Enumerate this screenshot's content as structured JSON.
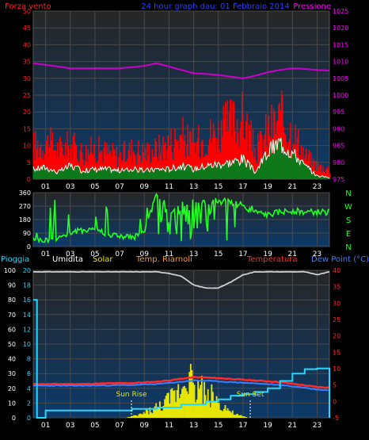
{
  "header": {
    "left_label": "Forza vento",
    "left_color": "#ff2020",
    "title": "24 hour graph dau: 01 Febbraio 2014",
    "title_color": "#2a3fff",
    "right_label": "Pressione",
    "right_color": "#ff00ff"
  },
  "compass": [
    "N",
    "W",
    "S",
    "E",
    "N"
  ],
  "middle_labels": {
    "pioggia": "Pioggia",
    "umidita": "Umidita",
    "solar": "Solar",
    "temp_riarnoli": "Temp. Riarnoli",
    "temperatura": "Temperatura",
    "dew_point": "Dew Point (°C)"
  },
  "annotations": {
    "sun_rise": "Sun Rise",
    "sun_set": "Sun Set"
  },
  "colors": {
    "wind_gust": "#ff0000",
    "wind_avg": "#ffffff",
    "wind_fill": "#0a7a1a",
    "pressure": "#cc00cc",
    "direction": "#22ff22",
    "humidity": "#cfcfcf",
    "solar": "#e6e600",
    "temperature": "#ff2a2a",
    "dewpoint": "#3a7fff",
    "rain": "#22d8ff",
    "bg_top": "#262626",
    "bg_bottom": "#0c3a6a"
  },
  "chart_data": [
    {
      "type": "line",
      "x_ticks": [
        "01",
        "03",
        "05",
        "07",
        "09",
        "11",
        "13",
        "15",
        "17",
        "19",
        "21",
        "23"
      ],
      "xlim": [
        0,
        24
      ],
      "ylim_left": [
        0,
        50
      ],
      "yticks_left": [
        0,
        5,
        10,
        15,
        20,
        25,
        30,
        35,
        40,
        45,
        50
      ],
      "ylim_right": [
        975,
        1025
      ],
      "yticks_right": [
        975,
        980,
        985,
        990,
        995,
        1000,
        1005,
        1010,
        1015,
        1020,
        1025
      ],
      "series": [
        {
          "name": "Pressione",
          "x": [
            0,
            1,
            2,
            3,
            4,
            5,
            6,
            7,
            8,
            9,
            10,
            11,
            12,
            13,
            14,
            15,
            16,
            17,
            18,
            19,
            20,
            21,
            22,
            23,
            24
          ],
          "values": [
            1009.5,
            1009,
            1008.5,
            1008,
            1008,
            1008,
            1008,
            1008,
            1008.3,
            1008.7,
            1009.5,
            1008.5,
            1007.5,
            1006.5,
            1006.3,
            1006,
            1005.5,
            1005,
            1005.8,
            1006.8,
            1007.5,
            1008,
            1007.8,
            1007.5,
            1007.3
          ]
        },
        {
          "name": "Forza vento",
          "x": [
            0,
            1,
            2,
            3,
            4,
            5,
            6,
            7,
            8,
            9,
            10,
            11,
            12,
            13,
            14,
            15,
            16,
            17,
            18,
            19,
            20,
            21,
            22,
            23,
            24
          ],
          "values": [
            10,
            11,
            9,
            10,
            8,
            9,
            8,
            7,
            9,
            8,
            9,
            11,
            13,
            10,
            13,
            14,
            17,
            18,
            8,
            15,
            18,
            14,
            7,
            4,
            3
          ]
        },
        {
          "name": "avg",
          "x": [
            0,
            1,
            2,
            3,
            4,
            5,
            6,
            7,
            8,
            9,
            10,
            11,
            12,
            13,
            14,
            15,
            16,
            17,
            18,
            19,
            20,
            21,
            22,
            23,
            24
          ],
          "values": [
            3,
            3.5,
            2,
            4,
            2.5,
            3,
            3,
            2.5,
            3,
            2.5,
            3,
            3,
            4,
            3,
            4,
            4.5,
            5,
            6,
            2,
            8,
            11,
            8,
            4,
            1,
            0.5
          ]
        }
      ]
    },
    {
      "type": "scatter",
      "x_ticks": [
        "01",
        "03",
        "05",
        "07",
        "09",
        "11",
        "13",
        "15",
        "17",
        "19",
        "21",
        "23"
      ],
      "xlim": [
        0,
        24
      ],
      "ylim": [
        0,
        360
      ],
      "yticks": [
        0,
        90,
        180,
        270,
        360
      ],
      "series": [
        {
          "name": "direction",
          "x": [
            0,
            1,
            2,
            3,
            4,
            5,
            6,
            7,
            8,
            9,
            10,
            11,
            12,
            13,
            14,
            15,
            16,
            17,
            18,
            19,
            20,
            21,
            22,
            23,
            24
          ],
          "values": [
            40,
            40,
            60,
            90,
            110,
            120,
            80,
            70,
            60,
            90,
            350,
            200,
            280,
            300,
            290,
            310,
            300,
            260,
            230,
            210,
            230,
            240,
            230,
            230,
            230
          ]
        }
      ]
    },
    {
      "type": "line",
      "x_ticks": [
        "01",
        "03",
        "05",
        "07",
        "09",
        "11",
        "13",
        "15",
        "17",
        "19",
        "21",
        "23"
      ],
      "xlim": [
        0,
        24
      ],
      "ylim_left": [
        0,
        100
      ],
      "yticks_left": [
        0,
        10,
        20,
        30,
        40,
        50,
        60,
        70,
        80,
        90,
        100
      ],
      "ylim_rain": [
        0,
        20
      ],
      "yticks_rain": [
        0,
        2,
        4,
        6,
        8,
        10,
        12,
        14,
        16,
        18,
        20
      ],
      "ylim_right": [
        -5,
        40
      ],
      "yticks_right": [
        -5,
        0,
        5,
        10,
        15,
        20,
        25,
        30,
        35,
        40
      ],
      "series": [
        {
          "name": "Umidita",
          "x": [
            0,
            2,
            4,
            6,
            8,
            10,
            11,
            12,
            13,
            14,
            15,
            16,
            17,
            18,
            20,
            22,
            23,
            24
          ],
          "values": [
            99,
            99,
            99,
            99,
            99,
            99,
            98,
            96,
            90,
            88,
            88,
            92,
            97,
            99,
            99,
            99,
            97,
            99
          ]
        },
        {
          "name": "Temperatura",
          "x": [
            0,
            2,
            4,
            6,
            8,
            10,
            11,
            12,
            13,
            14,
            15,
            16,
            17,
            18,
            20,
            22,
            23,
            24
          ],
          "values": [
            5.3,
            5.3,
            5.3,
            5.5,
            5.6,
            6.0,
            6.4,
            6.9,
            7.4,
            7.3,
            7.1,
            6.9,
            6.6,
            6.4,
            5.9,
            4.9,
            4.4,
            4.2
          ]
        },
        {
          "name": "Dew Point (°C)",
          "x": [
            0,
            2,
            4,
            6,
            8,
            10,
            11,
            12,
            13,
            14,
            15,
            16,
            17,
            18,
            20,
            22,
            23,
            24
          ],
          "values": [
            4.8,
            4.8,
            4.8,
            4.9,
            5.0,
            5.3,
            5.6,
            6.0,
            6.4,
            6.3,
            6.1,
            5.9,
            5.7,
            5.5,
            5.0,
            4.2,
            3.6,
            3.4
          ]
        },
        {
          "name": "Pioggia",
          "x": [
            0,
            0.3,
            1,
            4,
            6,
            8,
            10,
            12,
            14,
            15,
            16,
            17,
            18,
            19,
            20,
            21,
            22,
            23,
            24
          ],
          "values": [
            16,
            0,
            1,
            1,
            1,
            1.2,
            1.4,
            1.8,
            2.2,
            2.5,
            3,
            3.2,
            3.5,
            4,
            5,
            6,
            6.6,
            6.7,
            6.8
          ]
        },
        {
          "name": "Solar",
          "x": [
            0,
            7.4,
            8.5,
            9.5,
            10.5,
            11.5,
            12,
            12.5,
            13,
            13.5,
            14,
            14.5,
            15,
            15.5,
            16,
            16.5,
            17.4,
            24
          ],
          "values": [
            0,
            0,
            2,
            6,
            10,
            18,
            24,
            40,
            18,
            26,
            14,
            18,
            10,
            8,
            4,
            2,
            0,
            0
          ]
        }
      ]
    }
  ]
}
